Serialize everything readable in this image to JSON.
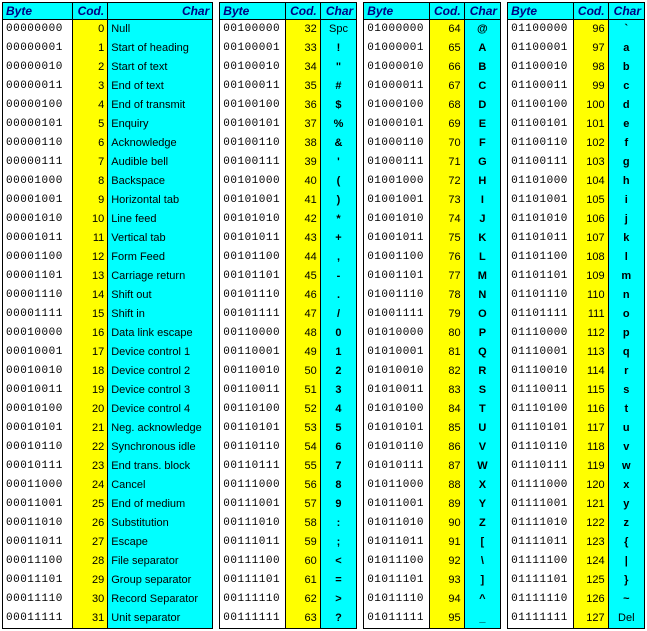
{
  "colors": {
    "header_bg": "#00ffff",
    "header_fg": "#000080",
    "byte_bg": "#ffffff",
    "cod_bg": "#ffff00",
    "char_bg": "#00ffff",
    "border": "#000000"
  },
  "typography": {
    "body_font": "Verdana, Arial, sans-serif",
    "byte_font": "Courier New, monospace",
    "base_size": 11,
    "header_size": 12,
    "header_style": "italic bold"
  },
  "headers": {
    "byte": "Byte",
    "cod": "Cod.",
    "char": "Char"
  },
  "col_widths": {
    "t0": {
      "byte": 66,
      "cod": 30,
      "char": 118
    },
    "t1": {
      "byte": 66,
      "cod": 30,
      "char": 36
    },
    "t2": {
      "byte": 66,
      "cod": 30,
      "char": 36
    },
    "t3": {
      "byte": 66,
      "cod": 30,
      "char": 36
    }
  },
  "tables": [
    {
      "id": "t0",
      "char_bold": false,
      "char_align": "left",
      "rows": [
        {
          "byte": "00000000",
          "cod": 0,
          "char": "Null"
        },
        {
          "byte": "00000001",
          "cod": 1,
          "char": "Start of heading"
        },
        {
          "byte": "00000010",
          "cod": 2,
          "char": "Start of text"
        },
        {
          "byte": "00000011",
          "cod": 3,
          "char": "End of text"
        },
        {
          "byte": "00000100",
          "cod": 4,
          "char": "End of transmit"
        },
        {
          "byte": "00000101",
          "cod": 5,
          "char": "Enquiry"
        },
        {
          "byte": "00000110",
          "cod": 6,
          "char": "Acknowledge"
        },
        {
          "byte": "00000111",
          "cod": 7,
          "char": "Audible bell"
        },
        {
          "byte": "00001000",
          "cod": 8,
          "char": "Backspace"
        },
        {
          "byte": "00001001",
          "cod": 9,
          "char": "Horizontal tab"
        },
        {
          "byte": "00001010",
          "cod": 10,
          "char": "Line feed"
        },
        {
          "byte": "00001011",
          "cod": 11,
          "char": "Vertical tab"
        },
        {
          "byte": "00001100",
          "cod": 12,
          "char": "Form Feed"
        },
        {
          "byte": "00001101",
          "cod": 13,
          "char": "Carriage return"
        },
        {
          "byte": "00001110",
          "cod": 14,
          "char": "Shift out"
        },
        {
          "byte": "00001111",
          "cod": 15,
          "char": "Shift in"
        },
        {
          "byte": "00010000",
          "cod": 16,
          "char": "Data link escape"
        },
        {
          "byte": "00010001",
          "cod": 17,
          "char": "Device control 1"
        },
        {
          "byte": "00010010",
          "cod": 18,
          "char": "Device control 2"
        },
        {
          "byte": "00010011",
          "cod": 19,
          "char": "Device control 3"
        },
        {
          "byte": "00010100",
          "cod": 20,
          "char": "Device control 4"
        },
        {
          "byte": "00010101",
          "cod": 21,
          "char": "Neg. acknowledge"
        },
        {
          "byte": "00010110",
          "cod": 22,
          "char": "Synchronous idle"
        },
        {
          "byte": "00010111",
          "cod": 23,
          "char": "End trans. block"
        },
        {
          "byte": "00011000",
          "cod": 24,
          "char": "Cancel"
        },
        {
          "byte": "00011001",
          "cod": 25,
          "char": "End of medium"
        },
        {
          "byte": "00011010",
          "cod": 26,
          "char": "Substitution"
        },
        {
          "byte": "00011011",
          "cod": 27,
          "char": "Escape"
        },
        {
          "byte": "00011100",
          "cod": 28,
          "char": "File separator"
        },
        {
          "byte": "00011101",
          "cod": 29,
          "char": "Group separator"
        },
        {
          "byte": "00011110",
          "cod": 30,
          "char": "Record Separator"
        },
        {
          "byte": "00011111",
          "cod": 31,
          "char": "Unit separator"
        }
      ]
    },
    {
      "id": "t1",
      "char_bold": true,
      "char_align": "center",
      "rows": [
        {
          "byte": "00100000",
          "cod": 32,
          "char": "Spc",
          "bold": false
        },
        {
          "byte": "00100001",
          "cod": 33,
          "char": "!"
        },
        {
          "byte": "00100010",
          "cod": 34,
          "char": "\""
        },
        {
          "byte": "00100011",
          "cod": 35,
          "char": "#"
        },
        {
          "byte": "00100100",
          "cod": 36,
          "char": "$"
        },
        {
          "byte": "00100101",
          "cod": 37,
          "char": "%"
        },
        {
          "byte": "00100110",
          "cod": 38,
          "char": "&"
        },
        {
          "byte": "00100111",
          "cod": 39,
          "char": "'"
        },
        {
          "byte": "00101000",
          "cod": 40,
          "char": "("
        },
        {
          "byte": "00101001",
          "cod": 41,
          "char": ")"
        },
        {
          "byte": "00101010",
          "cod": 42,
          "char": "*"
        },
        {
          "byte": "00101011",
          "cod": 43,
          "char": "+"
        },
        {
          "byte": "00101100",
          "cod": 44,
          "char": ","
        },
        {
          "byte": "00101101",
          "cod": 45,
          "char": "-"
        },
        {
          "byte": "00101110",
          "cod": 46,
          "char": "."
        },
        {
          "byte": "00101111",
          "cod": 47,
          "char": "/"
        },
        {
          "byte": "00110000",
          "cod": 48,
          "char": "0"
        },
        {
          "byte": "00110001",
          "cod": 49,
          "char": "1"
        },
        {
          "byte": "00110010",
          "cod": 50,
          "char": "2"
        },
        {
          "byte": "00110011",
          "cod": 51,
          "char": "3"
        },
        {
          "byte": "00110100",
          "cod": 52,
          "char": "4"
        },
        {
          "byte": "00110101",
          "cod": 53,
          "char": "5"
        },
        {
          "byte": "00110110",
          "cod": 54,
          "char": "6"
        },
        {
          "byte": "00110111",
          "cod": 55,
          "char": "7"
        },
        {
          "byte": "00111000",
          "cod": 56,
          "char": "8"
        },
        {
          "byte": "00111001",
          "cod": 57,
          "char": "9"
        },
        {
          "byte": "00111010",
          "cod": 58,
          "char": ":"
        },
        {
          "byte": "00111011",
          "cod": 59,
          "char": ";"
        },
        {
          "byte": "00111100",
          "cod": 60,
          "char": "<"
        },
        {
          "byte": "00111101",
          "cod": 61,
          "char": "="
        },
        {
          "byte": "00111110",
          "cod": 62,
          "char": ">"
        },
        {
          "byte": "00111111",
          "cod": 63,
          "char": "?"
        }
      ]
    },
    {
      "id": "t2",
      "char_bold": true,
      "char_align": "center",
      "rows": [
        {
          "byte": "01000000",
          "cod": 64,
          "char": "@"
        },
        {
          "byte": "01000001",
          "cod": 65,
          "char": "A"
        },
        {
          "byte": "01000010",
          "cod": 66,
          "char": "B"
        },
        {
          "byte": "01000011",
          "cod": 67,
          "char": "C"
        },
        {
          "byte": "01000100",
          "cod": 68,
          "char": "D"
        },
        {
          "byte": "01000101",
          "cod": 69,
          "char": "E"
        },
        {
          "byte": "01000110",
          "cod": 70,
          "char": "F"
        },
        {
          "byte": "01000111",
          "cod": 71,
          "char": "G"
        },
        {
          "byte": "01001000",
          "cod": 72,
          "char": "H"
        },
        {
          "byte": "01001001",
          "cod": 73,
          "char": "I"
        },
        {
          "byte": "01001010",
          "cod": 74,
          "char": "J"
        },
        {
          "byte": "01001011",
          "cod": 75,
          "char": "K"
        },
        {
          "byte": "01001100",
          "cod": 76,
          "char": "L"
        },
        {
          "byte": "01001101",
          "cod": 77,
          "char": "M"
        },
        {
          "byte": "01001110",
          "cod": 78,
          "char": "N"
        },
        {
          "byte": "01001111",
          "cod": 79,
          "char": "O"
        },
        {
          "byte": "01010000",
          "cod": 80,
          "char": "P"
        },
        {
          "byte": "01010001",
          "cod": 81,
          "char": "Q"
        },
        {
          "byte": "01010010",
          "cod": 82,
          "char": "R"
        },
        {
          "byte": "01010011",
          "cod": 83,
          "char": "S"
        },
        {
          "byte": "01010100",
          "cod": 84,
          "char": "T"
        },
        {
          "byte": "01010101",
          "cod": 85,
          "char": "U"
        },
        {
          "byte": "01010110",
          "cod": 86,
          "char": "V"
        },
        {
          "byte": "01010111",
          "cod": 87,
          "char": "W"
        },
        {
          "byte": "01011000",
          "cod": 88,
          "char": "X"
        },
        {
          "byte": "01011001",
          "cod": 89,
          "char": "Y"
        },
        {
          "byte": "01011010",
          "cod": 90,
          "char": "Z"
        },
        {
          "byte": "01011011",
          "cod": 91,
          "char": "["
        },
        {
          "byte": "01011100",
          "cod": 92,
          "char": "\\"
        },
        {
          "byte": "01011101",
          "cod": 93,
          "char": "]"
        },
        {
          "byte": "01011110",
          "cod": 94,
          "char": "^"
        },
        {
          "byte": "01011111",
          "cod": 95,
          "char": "_"
        }
      ]
    },
    {
      "id": "t3",
      "char_bold": true,
      "char_align": "center",
      "rows": [
        {
          "byte": "01100000",
          "cod": 96,
          "char": "`"
        },
        {
          "byte": "01100001",
          "cod": 97,
          "char": "a"
        },
        {
          "byte": "01100010",
          "cod": 98,
          "char": "b"
        },
        {
          "byte": "01100011",
          "cod": 99,
          "char": "c"
        },
        {
          "byte": "01100100",
          "cod": 100,
          "char": "d"
        },
        {
          "byte": "01100101",
          "cod": 101,
          "char": "e"
        },
        {
          "byte": "01100110",
          "cod": 102,
          "char": "f"
        },
        {
          "byte": "01100111",
          "cod": 103,
          "char": "g"
        },
        {
          "byte": "01101000",
          "cod": 104,
          "char": "h"
        },
        {
          "byte": "01101001",
          "cod": 105,
          "char": "i"
        },
        {
          "byte": "01101010",
          "cod": 106,
          "char": "j"
        },
        {
          "byte": "01101011",
          "cod": 107,
          "char": "k"
        },
        {
          "byte": "01101100",
          "cod": 108,
          "char": "l"
        },
        {
          "byte": "01101101",
          "cod": 109,
          "char": "m"
        },
        {
          "byte": "01101110",
          "cod": 110,
          "char": "n"
        },
        {
          "byte": "01101111",
          "cod": 111,
          "char": "o"
        },
        {
          "byte": "01110000",
          "cod": 112,
          "char": "p"
        },
        {
          "byte": "01110001",
          "cod": 113,
          "char": "q"
        },
        {
          "byte": "01110010",
          "cod": 114,
          "char": "r"
        },
        {
          "byte": "01110011",
          "cod": 115,
          "char": "s"
        },
        {
          "byte": "01110100",
          "cod": 116,
          "char": "t"
        },
        {
          "byte": "01110101",
          "cod": 117,
          "char": "u"
        },
        {
          "byte": "01110110",
          "cod": 118,
          "char": "v"
        },
        {
          "byte": "01110111",
          "cod": 119,
          "char": "w"
        },
        {
          "byte": "01111000",
          "cod": 120,
          "char": "x"
        },
        {
          "byte": "01111001",
          "cod": 121,
          "char": "y"
        },
        {
          "byte": "01111010",
          "cod": 122,
          "char": "z"
        },
        {
          "byte": "01111011",
          "cod": 123,
          "char": "{"
        },
        {
          "byte": "01111100",
          "cod": 124,
          "char": "|"
        },
        {
          "byte": "01111101",
          "cod": 125,
          "char": "}"
        },
        {
          "byte": "01111110",
          "cod": 126,
          "char": "~"
        },
        {
          "byte": "01111111",
          "cod": 127,
          "char": "Del",
          "bold": false
        }
      ]
    }
  ]
}
